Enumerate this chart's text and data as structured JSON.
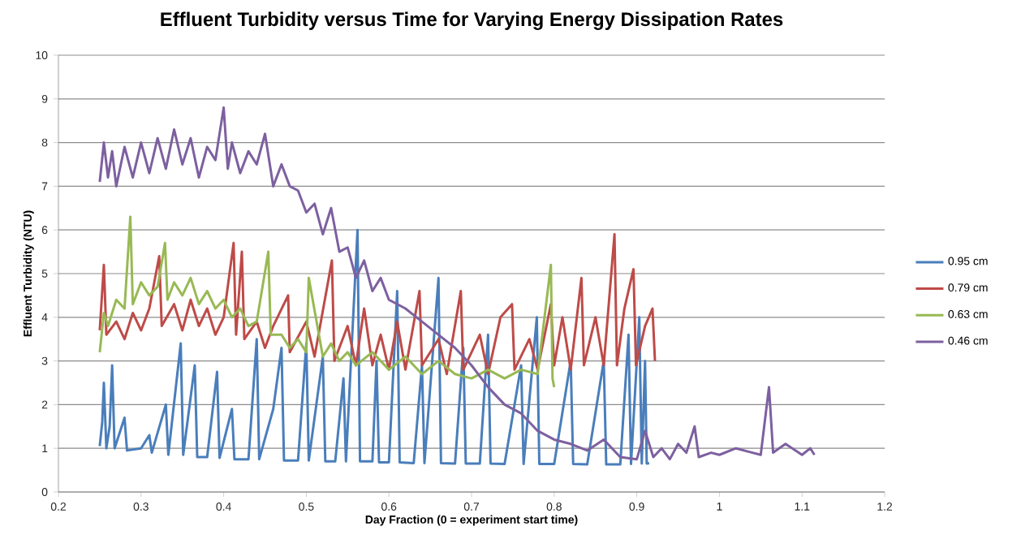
{
  "chart_data": {
    "type": "line",
    "title": "Effluent Turbidity versus Time for Varying Energy Dissipation Rates",
    "xlabel": "Day Fraction  (0 = experiment start time)",
    "ylabel": "Effluent Turbidity (NTU)",
    "xlim": [
      0.2,
      1.2
    ],
    "xticks": [
      0.2,
      0.3,
      0.4,
      0.5,
      0.6,
      0.7,
      0.8,
      0.9,
      1,
      1.1,
      1.2
    ],
    "ylim": [
      0,
      10
    ],
    "yticks": [
      0,
      1,
      2,
      3,
      4,
      5,
      6,
      7,
      8,
      9,
      10
    ],
    "grid": "y",
    "legend": "right",
    "series": [
      {
        "name": "0.95 cm",
        "color": "#4a7ebb",
        "x": [
          0.25,
          0.253,
          0.255,
          0.258,
          0.262,
          0.265,
          0.268,
          0.28,
          0.283,
          0.3,
          0.31,
          0.313,
          0.33,
          0.333,
          0.348,
          0.351,
          0.365,
          0.368,
          0.38,
          0.392,
          0.395,
          0.41,
          0.413,
          0.43,
          0.44,
          0.443,
          0.46,
          0.47,
          0.473,
          0.49,
          0.5,
          0.503,
          0.52,
          0.523,
          0.535,
          0.545,
          0.548,
          0.562,
          0.565,
          0.58,
          0.585,
          0.588,
          0.6,
          0.61,
          0.613,
          0.63,
          0.64,
          0.643,
          0.66,
          0.663,
          0.68,
          0.69,
          0.693,
          0.71,
          0.72,
          0.723,
          0.74,
          0.76,
          0.763,
          0.779,
          0.782,
          0.8,
          0.82,
          0.823,
          0.84,
          0.86,
          0.863,
          0.88,
          0.89,
          0.893,
          0.903,
          0.906,
          0.91,
          0.912,
          0.915
        ],
        "values": [
          1.05,
          1.6,
          2.5,
          1.0,
          1.5,
          2.9,
          1.0,
          1.7,
          0.95,
          1.0,
          1.3,
          0.9,
          2.0,
          0.85,
          3.4,
          0.85,
          2.9,
          0.8,
          0.8,
          2.75,
          0.78,
          1.9,
          0.75,
          0.75,
          3.5,
          0.75,
          1.9,
          3.3,
          0.72,
          0.72,
          3.4,
          0.72,
          3.1,
          0.7,
          0.7,
          2.6,
          0.7,
          6.0,
          0.7,
          0.7,
          3.0,
          0.68,
          0.68,
          4.6,
          0.68,
          0.66,
          2.9,
          0.66,
          4.9,
          0.66,
          0.65,
          3.3,
          0.65,
          0.65,
          3.6,
          0.65,
          0.64,
          2.9,
          0.64,
          4.0,
          0.64,
          0.64,
          3.0,
          0.64,
          0.63,
          3.0,
          0.63,
          0.63,
          3.6,
          0.64,
          4.0,
          0.65,
          3.0,
          0.65,
          0.66
        ]
      },
      {
        "name": "0.79 cm",
        "color": "#be4b48",
        "x": [
          0.25,
          0.255,
          0.258,
          0.27,
          0.28,
          0.29,
          0.3,
          0.31,
          0.322,
          0.325,
          0.34,
          0.35,
          0.36,
          0.37,
          0.38,
          0.39,
          0.4,
          0.412,
          0.415,
          0.422,
          0.425,
          0.44,
          0.45,
          0.46,
          0.478,
          0.48,
          0.5,
          0.51,
          0.531,
          0.534,
          0.55,
          0.56,
          0.57,
          0.58,
          0.59,
          0.6,
          0.61,
          0.62,
          0.637,
          0.64,
          0.66,
          0.67,
          0.687,
          0.69,
          0.71,
          0.72,
          0.735,
          0.749,
          0.752,
          0.77,
          0.78,
          0.796,
          0.8,
          0.81,
          0.82,
          0.833,
          0.836,
          0.85,
          0.86,
          0.873,
          0.876,
          0.885,
          0.896,
          0.899,
          0.91,
          0.919,
          0.922
        ],
        "values": [
          3.7,
          5.2,
          3.6,
          3.9,
          3.5,
          4.1,
          3.7,
          4.2,
          5.4,
          3.8,
          4.3,
          3.7,
          4.4,
          3.8,
          4.2,
          3.6,
          4.0,
          5.7,
          3.6,
          5.5,
          3.5,
          3.9,
          3.3,
          3.8,
          4.5,
          3.2,
          3.9,
          3.1,
          5.3,
          3.0,
          3.8,
          2.9,
          4.2,
          2.9,
          3.6,
          2.8,
          3.9,
          2.8,
          4.6,
          2.9,
          3.5,
          2.7,
          4.6,
          2.8,
          3.6,
          2.7,
          4.0,
          4.3,
          2.8,
          3.5,
          2.8,
          4.3,
          2.9,
          4.0,
          2.8,
          4.9,
          2.9,
          4.0,
          2.9,
          5.9,
          2.9,
          4.2,
          5.1,
          2.9,
          3.8,
          4.2,
          3.0
        ]
      },
      {
        "name": "0.63 cm",
        "color": "#98b954",
        "x": [
          0.25,
          0.255,
          0.26,
          0.27,
          0.28,
          0.287,
          0.29,
          0.3,
          0.31,
          0.32,
          0.329,
          0.332,
          0.34,
          0.35,
          0.36,
          0.37,
          0.38,
          0.39,
          0.4,
          0.41,
          0.42,
          0.43,
          0.44,
          0.454,
          0.457,
          0.47,
          0.48,
          0.49,
          0.5,
          0.503,
          0.52,
          0.53,
          0.54,
          0.55,
          0.56,
          0.58,
          0.6,
          0.62,
          0.64,
          0.66,
          0.68,
          0.7,
          0.72,
          0.74,
          0.76,
          0.78,
          0.796,
          0.798,
          0.8
        ],
        "values": [
          3.2,
          4.1,
          3.8,
          4.4,
          4.2,
          6.3,
          4.3,
          4.8,
          4.5,
          4.7,
          5.7,
          4.4,
          4.8,
          4.5,
          4.9,
          4.3,
          4.6,
          4.2,
          4.4,
          4.0,
          4.2,
          3.8,
          3.9,
          5.5,
          3.6,
          3.6,
          3.3,
          3.5,
          3.2,
          4.9,
          3.1,
          3.4,
          3.0,
          3.2,
          2.9,
          3.2,
          2.8,
          3.1,
          2.7,
          3.0,
          2.7,
          2.6,
          2.8,
          2.6,
          2.8,
          2.7,
          5.2,
          2.6,
          2.4
        ]
      },
      {
        "name": "0.46 cm",
        "color": "#7d60a0",
        "x": [
          0.25,
          0.255,
          0.26,
          0.265,
          0.27,
          0.28,
          0.29,
          0.3,
          0.31,
          0.32,
          0.33,
          0.34,
          0.35,
          0.36,
          0.37,
          0.38,
          0.39,
          0.4,
          0.405,
          0.41,
          0.42,
          0.43,
          0.44,
          0.45,
          0.46,
          0.47,
          0.48,
          0.49,
          0.5,
          0.51,
          0.52,
          0.53,
          0.54,
          0.55,
          0.56,
          0.57,
          0.58,
          0.59,
          0.6,
          0.62,
          0.64,
          0.66,
          0.68,
          0.7,
          0.72,
          0.74,
          0.76,
          0.78,
          0.8,
          0.82,
          0.84,
          0.86,
          0.88,
          0.9,
          0.91,
          0.92,
          0.93,
          0.94,
          0.95,
          0.96,
          0.97,
          0.975,
          0.99,
          1.0,
          1.02,
          1.04,
          1.05,
          1.06,
          1.065,
          1.08,
          1.1,
          1.11,
          1.115
        ],
        "values": [
          7.1,
          8.0,
          7.2,
          7.8,
          7.0,
          7.9,
          7.2,
          8.0,
          7.3,
          8.1,
          7.4,
          8.3,
          7.5,
          8.1,
          7.2,
          7.9,
          7.6,
          8.8,
          7.4,
          8.0,
          7.3,
          7.8,
          7.5,
          8.2,
          7.0,
          7.5,
          7.0,
          6.9,
          6.4,
          6.6,
          5.9,
          6.5,
          5.5,
          5.6,
          4.9,
          5.3,
          4.6,
          4.9,
          4.4,
          4.2,
          3.9,
          3.6,
          3.3,
          2.9,
          2.4,
          2.0,
          1.8,
          1.4,
          1.2,
          1.1,
          0.95,
          1.2,
          0.8,
          0.75,
          1.4,
          0.8,
          1.0,
          0.75,
          1.1,
          0.9,
          1.5,
          0.8,
          0.9,
          0.85,
          1.0,
          0.9,
          0.85,
          2.4,
          0.9,
          1.1,
          0.85,
          1.0,
          0.85
        ]
      }
    ]
  }
}
